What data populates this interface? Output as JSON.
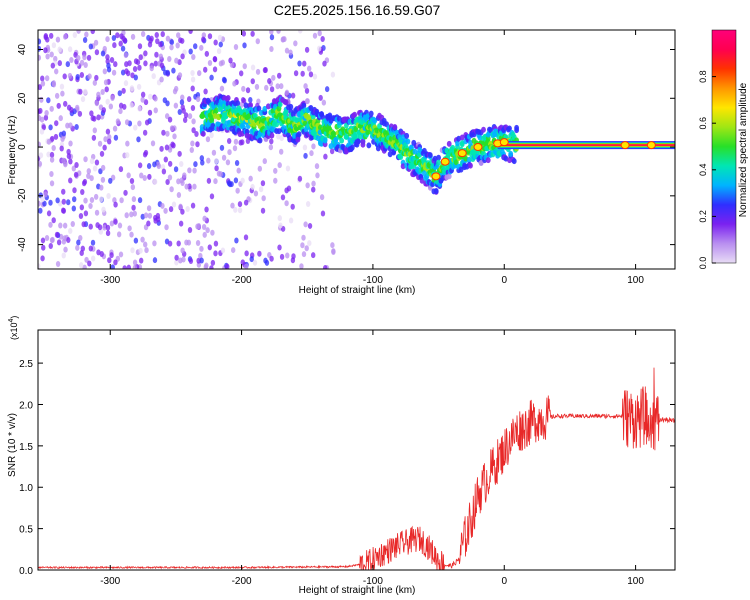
{
  "title": "C2E5.2025.156.16.59.G07",
  "chart_data": [
    {
      "type": "heatmap",
      "xlabel": "Height of straight line (km)",
      "ylabel": "Frequency (Hz)",
      "xlim": [
        -355,
        130
      ],
      "ylim": [
        -50,
        48
      ],
      "xticks": [
        -300,
        -200,
        -100,
        0,
        100
      ],
      "yticks": [
        -40,
        -20,
        0,
        20,
        40
      ],
      "colorbar": {
        "label": "Normalized spectral amplitude",
        "range": [
          0,
          1
        ],
        "ticks": [
          0.0,
          0.2,
          0.4,
          0.6,
          0.8
        ],
        "colors": [
          "#e8dcf5",
          "#b98ff0",
          "#7b22f0",
          "#2f2fff",
          "#00b4ff",
          "#00e6b4",
          "#28e028",
          "#a0e614",
          "#ffe600",
          "#ff9600",
          "#ff3200",
          "#ff0050",
          "#ff007a"
        ]
      },
      "ridge": {
        "x": [
          -230,
          -215,
          -200,
          -185,
          -170,
          -160,
          -150,
          -140,
          -130,
          -120,
          -110,
          -100,
          -90,
          -80,
          -70,
          -60,
          -52,
          -45,
          -38,
          -30,
          -20,
          -10,
          0,
          10,
          130
        ],
        "y": [
          12,
          14,
          12,
          9,
          14,
          8,
          12,
          7,
          6,
          5,
          8,
          7,
          5,
          0,
          -4,
          -8,
          -12,
          -6,
          -4,
          -2,
          0,
          1,
          2,
          0.8,
          0.8
        ]
      },
      "noise_region_xlim": [
        -355,
        -130
      ]
    },
    {
      "type": "line",
      "xlabel": "Height of straight line (km)",
      "ylabel": "SNR (10 * v/v)",
      "y_multiplier": "(x10",
      "y_multiplier_exp": "4",
      "xlim": [
        -355,
        130
      ],
      "ylim": [
        0,
        2.9
      ],
      "xticks": [
        -300,
        -200,
        -100,
        0,
        100
      ],
      "yticks": [
        "0.0",
        "0.5",
        "1.0",
        "1.5",
        "2.0",
        "2.5"
      ],
      "series": [
        {
          "color": "#e82828",
          "x": [
            -355,
            -200,
            -120,
            -105,
            -100,
            -95,
            -90,
            -85,
            -80,
            -75,
            -70,
            -65,
            -60,
            -55,
            -50,
            -45,
            -40,
            -35,
            -30,
            -25,
            -20,
            -15,
            -10,
            -5,
            0,
            5,
            10,
            15,
            20,
            25,
            30,
            40,
            50,
            60,
            70,
            80,
            90,
            95,
            100,
            105,
            110,
            113,
            116,
            120,
            130
          ],
          "y": [
            0.03,
            0.03,
            0.04,
            0.08,
            0.12,
            0.18,
            0.22,
            0.26,
            0.3,
            0.33,
            0.36,
            0.38,
            0.32,
            0.22,
            0.12,
            0.06,
            0.05,
            0.12,
            0.38,
            0.62,
            0.9,
            1.05,
            1.2,
            1.32,
            1.45,
            1.58,
            1.68,
            1.72,
            1.78,
            1.82,
            1.83,
            1.86,
            1.86,
            1.86,
            1.86,
            1.86,
            1.86,
            1.84,
            1.83,
            1.84,
            1.9,
            1.82,
            1.78,
            1.82,
            1.8
          ]
        }
      ]
    }
  ]
}
